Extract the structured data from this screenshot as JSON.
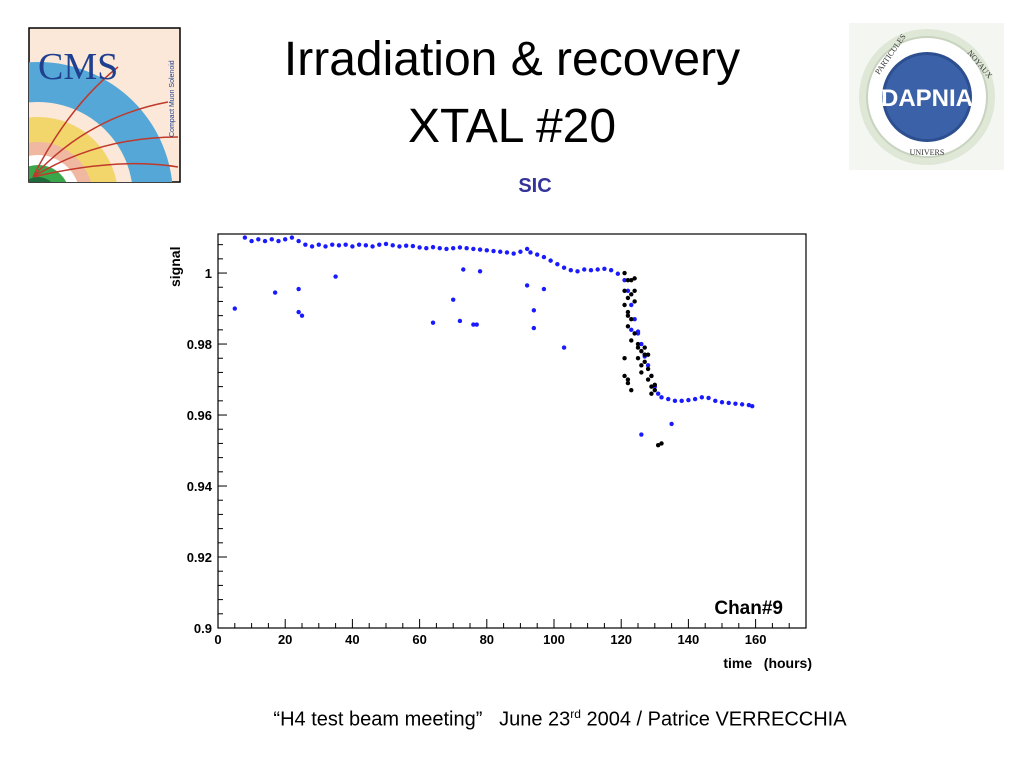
{
  "slide": {
    "title_line1": "Irradiation & recovery",
    "title_line2": "XTAL #20",
    "subtitle": "SIC",
    "footer_quote": "“H4 test beam meeting”",
    "footer_date_prefix": "June 23",
    "footer_date_suffix": "rd",
    "footer_rest": " 2004 / Patrice VERRECCHIA"
  },
  "logos": {
    "cms": {
      "text": "CMS",
      "subtext": "Compact Muon Solenoid"
    },
    "dapnia": {
      "text": "DAPNIA",
      "ring_left": "PARTICULES",
      "ring_right": "NOYAUX",
      "ring_bottom": "UNIVERS"
    }
  },
  "colors": {
    "series_blue": "#1a1aff",
    "series_black": "#000000",
    "subtitle": "#33339a"
  },
  "chart_data": {
    "type": "scatter",
    "title": "",
    "xlabel": "time   (hours)",
    "ylabel": "signal",
    "xlim": [
      0,
      175
    ],
    "ylim": [
      0.9,
      1.011
    ],
    "x_ticks": [
      0,
      20,
      40,
      60,
      80,
      100,
      120,
      140,
      160
    ],
    "y_ticks": [
      0.9,
      0.92,
      0.94,
      0.96,
      0.98,
      1
    ],
    "y_tick_labels": [
      "0.9",
      "0.92",
      "0.94",
      "0.96",
      "0.98",
      "1"
    ],
    "grid": false,
    "annotation": "Chan#9",
    "series": [
      {
        "color": "#1a1aff",
        "points": [
          [
            5,
            0.99
          ],
          [
            8,
            1.01
          ],
          [
            10,
            1.009
          ],
          [
            12,
            1.0095
          ],
          [
            14,
            1.009
          ],
          [
            16,
            1.0095
          ],
          [
            18,
            1.009
          ],
          [
            20,
            1.0095
          ],
          [
            22,
            1.01
          ],
          [
            24,
            1.009
          ],
          [
            26,
            1.008
          ],
          [
            28,
            1.0075
          ],
          [
            30,
            1.008
          ],
          [
            32,
            1.0075
          ],
          [
            34,
            1.008
          ],
          [
            36,
            1.0078
          ],
          [
            38,
            1.008
          ],
          [
            40,
            1.0075
          ],
          [
            42,
            1.008
          ],
          [
            44,
            1.0078
          ],
          [
            46,
            1.0075
          ],
          [
            48,
            1.008
          ],
          [
            50,
            1.0082
          ],
          [
            52,
            1.0078
          ],
          [
            54,
            1.0075
          ],
          [
            56,
            1.0077
          ],
          [
            58,
            1.0076
          ],
          [
            60,
            1.0072
          ],
          [
            62,
            1.007
          ],
          [
            64,
            1.0073
          ],
          [
            66,
            1.007
          ],
          [
            68,
            1.0068
          ],
          [
            70,
            1.007
          ],
          [
            72,
            1.0072
          ],
          [
            74,
            1.007
          ],
          [
            76,
            1.0068
          ],
          [
            78,
            1.0066
          ],
          [
            80,
            1.0064
          ],
          [
            82,
            1.0062
          ],
          [
            84,
            1.006
          ],
          [
            86,
            1.0058
          ],
          [
            88,
            1.0055
          ],
          [
            90,
            1.006
          ],
          [
            92,
            1.0068
          ],
          [
            93,
            1.0058
          ],
          [
            95,
            1.0052
          ],
          [
            97,
            1.0045
          ],
          [
            99,
            1.0035
          ],
          [
            101,
            1.0025
          ],
          [
            103,
            1.0015
          ],
          [
            105,
            1.0008
          ],
          [
            107,
            1.0005
          ],
          [
            109,
            1.001
          ],
          [
            111,
            1.0008
          ],
          [
            113,
            1.001
          ],
          [
            115,
            1.0012
          ],
          [
            117,
            1.0008
          ],
          [
            119,
            0.9998
          ],
          [
            121,
            0.998
          ],
          [
            122,
            0.995
          ],
          [
            123,
            0.991
          ],
          [
            124,
            0.987
          ],
          [
            125,
            0.983
          ],
          [
            126,
            0.98
          ],
          [
            127,
            0.977
          ],
          [
            128,
            0.974
          ],
          [
            129,
            0.971
          ],
          [
            130,
            0.968
          ],
          [
            131,
            0.966
          ],
          [
            132,
            0.965
          ],
          [
            134,
            0.9645
          ],
          [
            136,
            0.964
          ],
          [
            138,
            0.964
          ],
          [
            140,
            0.9642
          ],
          [
            142,
            0.9645
          ],
          [
            144,
            0.965
          ],
          [
            146,
            0.9648
          ],
          [
            148,
            0.964
          ],
          [
            150,
            0.9636
          ],
          [
            152,
            0.9634
          ],
          [
            154,
            0.9632
          ],
          [
            156,
            0.963
          ],
          [
            158,
            0.9628
          ],
          [
            159,
            0.9625
          ],
          [
            17,
            0.9945
          ],
          [
            24,
            0.9955
          ],
          [
            24,
            0.989
          ],
          [
            25,
            0.988
          ],
          [
            35,
            0.999
          ],
          [
            64,
            0.986
          ],
          [
            70,
            0.9925
          ],
          [
            72,
            0.9865
          ],
          [
            73,
            1.001
          ],
          [
            76,
            0.9855
          ],
          [
            77,
            0.9855
          ],
          [
            78,
            1.0005
          ],
          [
            92,
            0.9965
          ],
          [
            94,
            0.9895
          ],
          [
            94,
            0.9845
          ],
          [
            97,
            0.9955
          ],
          [
            103,
            0.979
          ],
          [
            126,
            0.9545
          ],
          [
            135,
            0.9575
          ],
          [
            123,
            0.984
          ],
          [
            125,
            0.9835
          ],
          [
            127,
            0.9765
          ]
        ]
      },
      {
        "color": "#000000",
        "points": [
          [
            121,
            1.0
          ],
          [
            122,
            0.998
          ],
          [
            121,
            0.995
          ],
          [
            122,
            0.993
          ],
          [
            121,
            0.991
          ],
          [
            123,
            0.998
          ],
          [
            123,
            0.994
          ],
          [
            124,
            0.9985
          ],
          [
            124,
            0.995
          ],
          [
            122,
            0.989
          ],
          [
            123,
            0.987
          ],
          [
            122,
            0.985
          ],
          [
            124,
            0.983
          ],
          [
            123,
            0.981
          ],
          [
            122,
            0.988
          ],
          [
            124,
            0.992
          ],
          [
            125,
            0.98
          ],
          [
            126,
            0.978
          ],
          [
            125,
            0.976
          ],
          [
            126,
            0.974
          ],
          [
            127,
            0.977
          ],
          [
            126,
            0.972
          ],
          [
            127,
            0.975
          ],
          [
            128,
            0.973
          ],
          [
            128,
            0.97
          ],
          [
            129,
            0.968
          ],
          [
            130,
            0.967
          ],
          [
            129,
            0.971
          ],
          [
            127,
            0.979
          ],
          [
            121,
            0.971
          ],
          [
            122,
            0.969
          ],
          [
            123,
            0.967
          ],
          [
            121,
            0.976
          ],
          [
            122,
            0.97
          ],
          [
            129,
            0.966
          ],
          [
            130,
            0.9685
          ],
          [
            132,
            0.952
          ],
          [
            131,
            0.9515
          ],
          [
            128,
            0.977
          ],
          [
            125,
            0.979
          ]
        ]
      }
    ]
  }
}
